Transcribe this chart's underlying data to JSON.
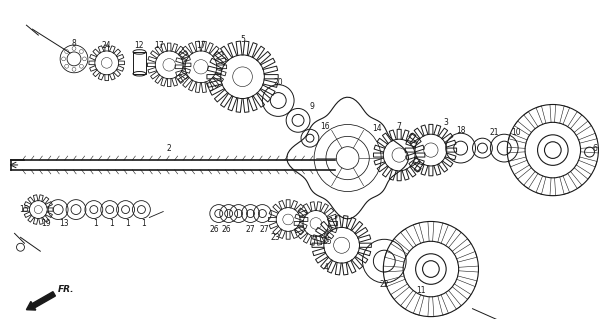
{
  "bg_color": "#ffffff",
  "fg_color": "#1a1a1a",
  "figsize": [
    6.08,
    3.2
  ],
  "dpi": 100
}
